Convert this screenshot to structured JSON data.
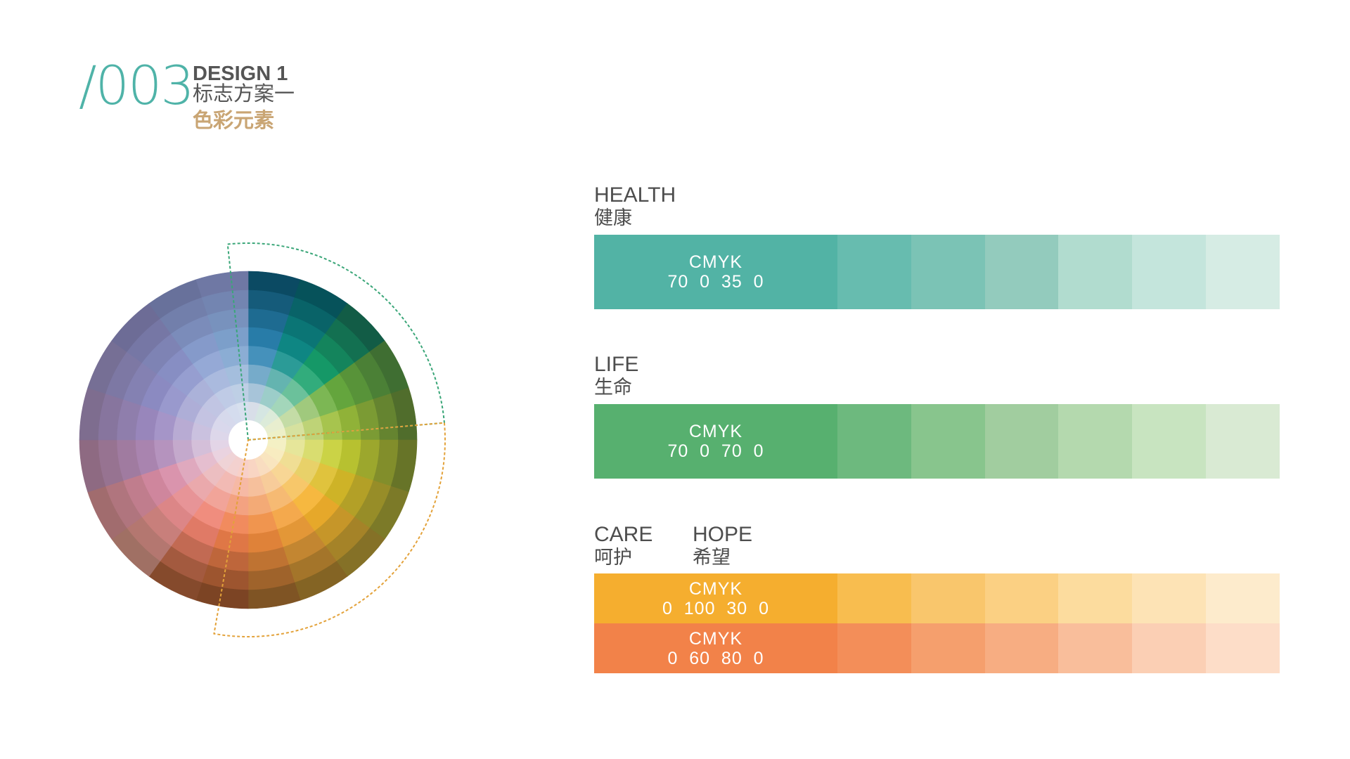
{
  "header": {
    "number": "/003",
    "design_label": "DESIGN 1",
    "subtitle_cn": "标志方案一",
    "section_cn": "色彩元素"
  },
  "palettes": [
    {
      "id": "health",
      "name_en": "HEALTH",
      "name_cn": "健康",
      "cmyk_label": "CMYK",
      "cmyk_values": "70  0  35  0",
      "base_color": "#52b3a5",
      "tints": [
        "#67bcaf",
        "#7bc3b5",
        "#93cbbd",
        "#b1dccf",
        "#c4e5dc",
        "#d6ece4"
      ]
    },
    {
      "id": "life",
      "name_en": "LIFE",
      "name_cn": "生命",
      "cmyk_label": "CMYK",
      "cmyk_values": "70  0  70  0",
      "base_color": "#57b06f",
      "tints": [
        "#6db97e",
        "#88c58d",
        "#a1cd9f",
        "#b4d9ae",
        "#c8e4c0",
        "#d9ead3"
      ]
    },
    {
      "id": "care",
      "name_en": "CARE",
      "name_cn": "呵护",
      "cmyk_label": "CMYK",
      "cmyk_values": "0  100  30  0",
      "base_color": "#f5ae2f",
      "tints": [
        "#f8bd4f",
        "#f9c66c",
        "#fbd083",
        "#fcdc9e",
        "#fde3b5",
        "#fdebcc"
      ]
    },
    {
      "id": "hope",
      "name_en": "HOPE",
      "name_cn": "希望",
      "cmyk_label": "CMYK",
      "cmyk_values": "0  60  80  0",
      "base_color": "#f28249",
      "tints": [
        "#f38e59",
        "#f59f6d",
        "#f7ad82",
        "#f9be9b",
        "#fbcfb4",
        "#fdddc8"
      ]
    }
  ],
  "wheel_colors": {
    "outer": [
      "#0b4a63",
      "#06525a",
      "#125c46",
      "#3f6e32",
      "#506d2c",
      "#677428",
      "#7c7a28",
      "#857127",
      "#846424",
      "#7f5424",
      "#7c4424",
      "#854a2c",
      "#a07064",
      "#a16c6e",
      "#8e6a82",
      "#7e6d8f",
      "#766f95",
      "#6d6c96",
      "#68719b",
      "#6f78a4"
    ],
    "inner": [
      "#d8dee8",
      "#d5e6e2",
      "#dcebd9",
      "#e8eecf",
      "#edf0c8",
      "#f4f0c4",
      "#f8ecc0",
      "#f9e5bf",
      "#f9ddc0",
      "#f9d5c3",
      "#f8d0c8",
      "#f3d1cf",
      "#efd3d6",
      "#ead3e0",
      "#e3d5e7",
      "#ddd7ea",
      "#d9d8ec",
      "#d6d9ec",
      "#d4dcee",
      "#d7e0ee"
    ],
    "mid": [
      "#2d84b3",
      "#0f8f8a",
      "#16a26c",
      "#6aae3f",
      "#9bbd3a",
      "#c4ce31",
      "#dcbc27",
      "#f6b12b",
      "#f3a03a",
      "#ef8a3c",
      "#f07f4c",
      "#ef8270",
      "#e68a8d",
      "#d78aa5",
      "#ad88b7",
      "#9c8ac2",
      "#8e8ec8",
      "#8b94cb",
      "#8aa1d2",
      "#7ea5d0"
    ],
    "highlight_health_life": "#3aa678",
    "highlight_care_hope": "#e3a23a"
  }
}
